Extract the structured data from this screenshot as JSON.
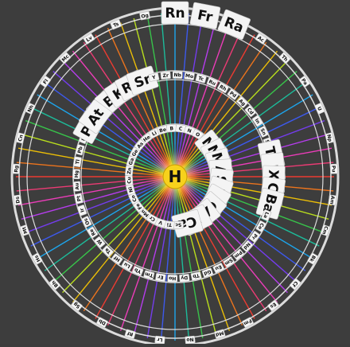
{
  "title": "",
  "center": {
    "symbol": "H",
    "color": "#f7d21c"
  },
  "inner_ring": [
    "He",
    "Li",
    "Be",
    "B",
    "C",
    "N",
    "O",
    "F",
    "Ne",
    "Na",
    "Mg",
    "Al",
    "Si",
    "P",
    "S",
    "Cl",
    "Ar",
    "K",
    "Ca",
    "Sc",
    "Ti",
    "V",
    "Cr",
    "Mn",
    "Fe",
    "Co",
    "Ni",
    "Cu",
    "Zn",
    "Ga",
    "Ge",
    "As"
  ],
  "middle_ring": [
    "Se",
    "Br",
    "Kr",
    "Rb",
    "Sr",
    "Y",
    "Zr",
    "Nb",
    "Mo",
    "Tc",
    "Ru",
    "Rh",
    "Pd",
    "Ag",
    "Cd",
    "In",
    "Sn",
    "Sb",
    "Te",
    "I",
    "Xe",
    "Cs",
    "Ba",
    "La",
    "Ce",
    "Pr",
    "Nd",
    "Pm",
    "Sm",
    "Eu",
    "Gd",
    "Tb",
    "Dy",
    "Ho",
    "Er",
    "Tm",
    "Yb",
    "Lu",
    "Hf",
    "Ta",
    "W",
    "Re",
    "Os",
    "Ir",
    "Pt",
    "Au",
    "Hg",
    "Tl",
    "Pb",
    "Bi",
    "Po",
    "At"
  ],
  "outer_ring": [
    "Rn",
    "Fr",
    "Ra",
    "Ac",
    "Th",
    "Pa",
    "U",
    "Np",
    "Pu",
    "Am",
    "Cm",
    "Bk",
    "Cf",
    "Es",
    "Fm",
    "Md",
    "No",
    "Lr",
    "Rf",
    "Db",
    "Sg",
    "Bh",
    "Hs",
    "Mt",
    "Ds",
    "Rg",
    "Cn",
    "Nh",
    "Fl",
    "Mc",
    "Lv",
    "Ts",
    "Og"
  ],
  "big_tiles": [
    "Ne",
    "Na",
    "Mg",
    "Al",
    "Si",
    "P",
    "S",
    "Cl",
    "Ar",
    "K",
    "Ca",
    "Se",
    "Br",
    "Kr",
    "Rb",
    "Sr",
    "Te",
    "I",
    "Xe",
    "Cs",
    "Ba",
    "Po",
    "At",
    "Rn",
    "Fr",
    "Ra"
  ],
  "spoke_colors": [
    "#ff3b30",
    "#ff7a1a",
    "#ffcc00",
    "#c6f01a",
    "#37d04b",
    "#19c9a4",
    "#1ab0ff",
    "#3d5cff",
    "#7a3dff",
    "#c23dff",
    "#ff3dc6",
    "#ff3b7a"
  ]
}
